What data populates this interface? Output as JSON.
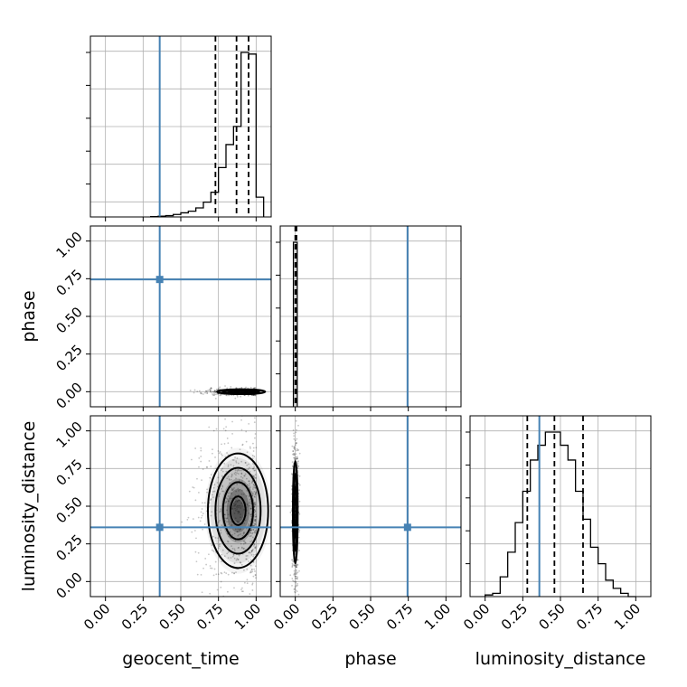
{
  "chart_data": {
    "type": "corner",
    "parameters": [
      "geocent_time",
      "phase",
      "luminosity_distance"
    ],
    "truth_color": "#4682b4",
    "truths": {
      "geocent_time": 0.36,
      "phase": 0.745,
      "luminosity_distance": 0.36
    },
    "axis_range": [
      -0.1,
      1.1
    ],
    "ticks": [
      0.0,
      0.25,
      0.5,
      0.75,
      1.0
    ],
    "tick_labels": [
      "0.00",
      "0.25",
      "0.50",
      "0.75",
      "1.00"
    ],
    "grid": true,
    "marginals": {
      "geocent_time": {
        "bins": [
          0.3,
          0.35,
          0.4,
          0.45,
          0.5,
          0.55,
          0.6,
          0.65,
          0.7,
          0.75,
          0.8,
          0.85,
          0.9,
          0.95,
          1.0,
          1.05
        ],
        "counts": [
          0.002,
          0.005,
          0.008,
          0.015,
          0.025,
          0.035,
          0.055,
          0.09,
          0.15,
          0.3,
          0.44,
          0.55,
          1.0,
          0.99,
          0.12
        ],
        "quantiles": [
          0.73,
          0.87,
          0.95
        ]
      },
      "phase": {
        "bins": [
          -0.0125,
          0.0,
          0.0125
        ],
        "counts": [
          1.0,
          1.0
        ],
        "quantiles": [
          0.0,
          0.002,
          0.008
        ]
      },
      "luminosity_distance": {
        "bins": [
          0.0,
          0.05,
          0.1,
          0.15,
          0.2,
          0.25,
          0.3,
          0.35,
          0.4,
          0.45,
          0.5,
          0.55,
          0.6,
          0.65,
          0.7,
          0.75,
          0.8,
          0.85,
          0.9,
          0.95,
          1.0
        ],
        "counts": [
          0.01,
          0.02,
          0.12,
          0.27,
          0.45,
          0.64,
          0.83,
          0.92,
          1.0,
          1.0,
          0.92,
          0.83,
          0.64,
          0.47,
          0.3,
          0.2,
          0.1,
          0.05,
          0.02,
          0.0
        ],
        "quantiles": [
          0.28,
          0.46,
          0.65
        ]
      }
    },
    "joint": [
      {
        "x": "geocent_time",
        "y": "phase",
        "center": [
          0.9,
          0.0
        ],
        "spread": [
          0.08,
          0.008
        ],
        "contour_levels": [
          0.5,
          1.0,
          1.5,
          2.0
        ]
      },
      {
        "x": "geocent_time",
        "y": "luminosity_distance",
        "center": [
          0.88,
          0.47
        ],
        "spread": [
          0.1,
          0.19
        ],
        "contour_levels": [
          0.5,
          1.0,
          1.5,
          2.0
        ]
      },
      {
        "x": "phase",
        "y": "luminosity_distance",
        "center": [
          0.0,
          0.46
        ],
        "spread": [
          0.008,
          0.17
        ],
        "contour_levels": [
          0.5,
          1.0,
          1.5,
          2.0
        ]
      }
    ],
    "axis_labels": {
      "x": [
        "geocent_time",
        "phase",
        "luminosity_distance"
      ],
      "y": [
        "phase",
        "luminosity_distance"
      ]
    }
  }
}
